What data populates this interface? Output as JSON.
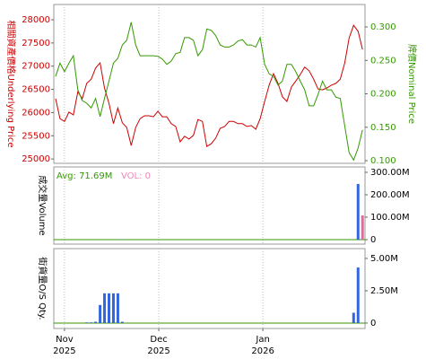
{
  "chart_data": [
    {
      "type": "line",
      "ylabel": "相關資產價格Underlying Price",
      "y2label": "牌價Nominal Price",
      "ylabel_color": "#cc0000",
      "y2label_color": "#339900",
      "xlim": [
        -0.4,
        69.56
      ],
      "ylim": [
        24906,
        28329
      ],
      "yticks": [
        25000,
        25500,
        26000,
        26500,
        27000,
        27500,
        28000
      ],
      "y2lim": [
        0.096,
        0.3336
      ],
      "y2ticks": [
        {
          "value": 0.1,
          "label": "0.100"
        },
        {
          "value": 0.15,
          "label": "0.150"
        },
        {
          "value": 0.2,
          "label": "0.200"
        },
        {
          "value": 0.25,
          "label": "0.250"
        },
        {
          "value": 0.3,
          "label": "0.300"
        }
      ],
      "series": [
        {
          "color": "#cc0000",
          "axis": "y",
          "values": [
            26300,
            25870,
            25810,
            26010,
            25950,
            26450,
            26300,
            26630,
            26720,
            26960,
            27070,
            26530,
            26200,
            25760,
            26100,
            25780,
            25680,
            25290,
            25680,
            25870,
            25930,
            25930,
            25910,
            26030,
            25910,
            25910,
            25760,
            25700,
            25370,
            25490,
            25430,
            25510,
            25850,
            25810,
            25270,
            25330,
            25450,
            25660,
            25700,
            25810,
            25810,
            25760,
            25760,
            25700,
            25720,
            25640,
            25870,
            26240,
            26590,
            26840,
            26630,
            26340,
            26240,
            26550,
            26680,
            26820,
            26980,
            26900,
            26720,
            26510,
            26490,
            26530,
            26590,
            26630,
            26720,
            27070,
            27610,
            27880,
            27750,
            27360
          ]
        },
        {
          "color": "#339900",
          "axis": "y2",
          "values": [
            0.226,
            0.246,
            0.233,
            0.246,
            0.257,
            0.206,
            0.19,
            0.186,
            0.179,
            0.193,
            0.166,
            0.193,
            0.219,
            0.246,
            0.253,
            0.273,
            0.28,
            0.307,
            0.273,
            0.257,
            0.257,
            0.257,
            0.257,
            0.256,
            0.252,
            0.244,
            0.249,
            0.26,
            0.262,
            0.284,
            0.284,
            0.28,
            0.257,
            0.266,
            0.297,
            0.295,
            0.287,
            0.273,
            0.27,
            0.27,
            0.273,
            0.279,
            0.281,
            0.273,
            0.273,
            0.27,
            0.284,
            0.244,
            0.23,
            0.226,
            0.213,
            0.219,
            0.244,
            0.244,
            0.233,
            0.219,
            0.206,
            0.182,
            0.182,
            0.199,
            0.219,
            0.206,
            0.206,
            0.195,
            0.193,
            0.152,
            0.112,
            0.101,
            0.119,
            0.146
          ]
        }
      ]
    },
    {
      "type": "bar",
      "ylabel": "成交量Volume",
      "annotations": [
        {
          "text": "Avg: 71.69M",
          "color": "#339900"
        },
        {
          "text": "VOL: 0",
          "color": "#ee88bb"
        }
      ],
      "xlim": [
        -0.4,
        69.56
      ],
      "ylim": [
        -20000000,
        324000000
      ],
      "yticks": [
        0,
        {
          "value": 100000000,
          "label": "100.00M"
        },
        {
          "value": 200000000,
          "label": "200.00M"
        },
        {
          "value": 300000000,
          "label": "300.00M"
        }
      ],
      "series": [
        {
          "color": "#3366dd",
          "values": [
            0,
            0,
            0,
            0,
            0,
            0,
            0,
            0,
            0,
            0,
            0,
            0,
            0,
            0,
            0,
            2000000,
            0,
            0,
            0,
            0,
            0,
            0,
            0,
            0,
            0,
            0,
            0,
            0,
            0,
            0,
            0,
            0,
            0,
            0,
            0,
            0,
            0,
            0,
            0,
            0,
            0,
            0,
            0,
            0,
            0,
            0,
            0,
            0,
            0,
            0,
            0,
            0,
            0,
            0,
            0,
            0,
            0,
            0,
            0,
            0,
            0,
            0,
            0,
            0,
            0,
            0,
            0,
            0,
            248000000,
            null
          ]
        },
        {
          "color": "#ee6699",
          "values": [
            null,
            null,
            null,
            null,
            null,
            null,
            null,
            null,
            null,
            null,
            null,
            null,
            null,
            null,
            null,
            null,
            null,
            null,
            null,
            null,
            null,
            null,
            null,
            null,
            null,
            null,
            null,
            null,
            null,
            null,
            null,
            null,
            null,
            null,
            null,
            null,
            null,
            null,
            null,
            null,
            null,
            null,
            null,
            null,
            null,
            null,
            null,
            null,
            null,
            null,
            null,
            null,
            null,
            null,
            null,
            null,
            null,
            null,
            null,
            null,
            null,
            null,
            null,
            null,
            null,
            null,
            null,
            null,
            null,
            108000000
          ]
        }
      ]
    },
    {
      "type": "bar",
      "ylabel": "街貨量O/S Qty.",
      "xlim": [
        -0.4,
        69.56
      ],
      "ylim": [
        -420000,
        5760000
      ],
      "yticks": [
        0,
        {
          "value": 2500000,
          "label": "2.50M"
        },
        {
          "value": 5000000,
          "label": "5.00M"
        }
      ],
      "xticks": [
        {
          "value": 2,
          "label": "Nov"
        },
        {
          "value": 23.2,
          "label": "Dec"
        },
        {
          "value": 46.6,
          "label": "Jan"
        }
      ],
      "xtick_years": [
        "2025",
        "2025",
        "2026"
      ],
      "series": [
        {
          "color": "#3366dd",
          "values": [
            0,
            0,
            0,
            0,
            0,
            0,
            0,
            50000,
            50000,
            100000,
            1400000,
            2300000,
            2300000,
            2300000,
            2300000,
            100000,
            0,
            0,
            0,
            0,
            0,
            0,
            0,
            0,
            0,
            0,
            0,
            0,
            0,
            0,
            0,
            0,
            0,
            0,
            0,
            0,
            0,
            0,
            0,
            0,
            0,
            0,
            0,
            0,
            0,
            0,
            0,
            0,
            0,
            0,
            0,
            0,
            0,
            0,
            0,
            0,
            0,
            0,
            0,
            0,
            0,
            0,
            0,
            0,
            0,
            0,
            0,
            800000,
            4300000,
            0
          ]
        }
      ]
    }
  ]
}
